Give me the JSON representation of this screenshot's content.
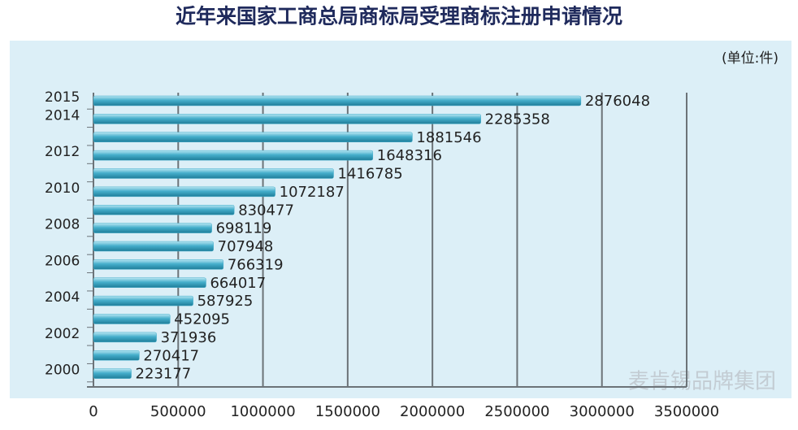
{
  "chart_data": {
    "type": "bar",
    "orientation": "horizontal",
    "title": "近年来国家工商总局商标局受理商标注册申请情况",
    "unit_note": "(单位:件)",
    "watermark": "麦肯锡品牌集团",
    "categories": [
      "2015",
      "2014",
      null,
      "2012",
      null,
      "2010",
      null,
      "2008",
      null,
      "2006",
      null,
      "2004",
      null,
      "2002",
      null,
      "2000"
    ],
    "values": [
      2876048,
      2285358,
      1881546,
      1648316,
      1416785,
      1072187,
      830477,
      698119,
      707948,
      766319,
      664017,
      587925,
      452095,
      371936,
      270417,
      223177
    ],
    "color": "#45aecb",
    "xlim": [
      0,
      3500000
    ],
    "xticks": [
      0,
      500000,
      1000000,
      1500000,
      2000000,
      2500000,
      3000000,
      3500000
    ],
    "grid": true
  }
}
